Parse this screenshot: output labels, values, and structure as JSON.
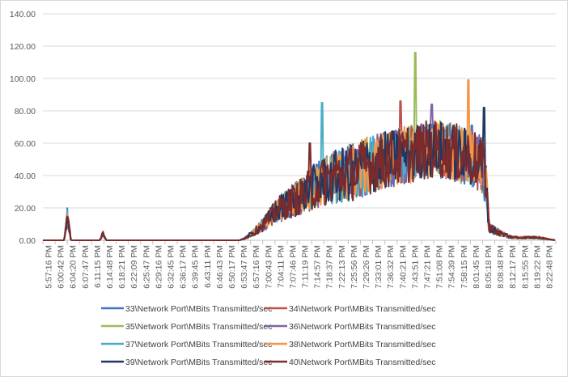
{
  "chart_data": {
    "type": "line",
    "title": "",
    "xlabel": "",
    "ylabel": "",
    "ylim": [
      0,
      140
    ],
    "y_ticks": [
      "0.00",
      "20.00",
      "40.00",
      "60.00",
      "80.00",
      "100.00",
      "120.00",
      "140.00"
    ],
    "grid": true,
    "legend_position": "bottom",
    "x_time_range": [
      "5:57:16 PM",
      "8:24:30 PM"
    ],
    "x_ticks": [
      "5:57:16 PM",
      "6:00:42 PM",
      "6:04:20 PM",
      "6:07:47 PM",
      "6:11:15 PM",
      "6:14:48 PM",
      "6:18:21 PM",
      "6:22:09 PM",
      "6:25:47 PM",
      "6:29:16 PM",
      "6:32:45 PM",
      "6:36:17 PM",
      "6:39:45 PM",
      "6:43:11 PM",
      "6:46:43 PM",
      "6:50:17 PM",
      "6:53:47 PM",
      "6:57:16 PM",
      "7:00:43 PM",
      "7:04:11 PM",
      "7:07:46 PM",
      "7:11:19 PM",
      "7:14:57 PM",
      "7:18:37 PM",
      "7:22:13 PM",
      "7:25:56 PM",
      "7:29:26 PM",
      "7:33:01 PM",
      "7:36:32 PM",
      "7:40:21 PM",
      "7:43:51 PM",
      "7:47:21 PM",
      "7:51:08 PM",
      "7:54:39 PM",
      "7:58:15 PM",
      "8:01:45 PM",
      "8:05:18 PM",
      "8:08:48 PM",
      "8:12:17 PM",
      "8:15:55 PM",
      "8:19:22 PM",
      "8:22:48 PM"
    ],
    "profile": {
      "x": [
        "5:57:16 PM",
        "6:03:20 PM",
        "6:04:20 PM",
        "6:05:20 PM",
        "6:13:30 PM",
        "6:14:30 PM",
        "6:15:30 PM",
        "6:53:47 PM",
        "6:57:16 PM",
        "7:00:43 PM",
        "7:04:11 PM",
        "7:07:46 PM",
        "7:11:19 PM",
        "7:14:57 PM",
        "7:18:37 PM",
        "7:22:13 PM",
        "7:25:56 PM",
        "7:29:26 PM",
        "7:33:01 PM",
        "7:36:32 PM",
        "7:40:21 PM",
        "7:43:51 PM",
        "7:47:21 PM",
        "7:51:08 PM",
        "7:54:39 PM",
        "7:58:15 PM",
        "8:01:45 PM",
        "8:04:30 PM",
        "8:05:18 PM",
        "8:08:48 PM",
        "8:12:17 PM",
        "8:15:55 PM",
        "8:19:22 PM",
        "8:24:30 PM"
      ],
      "y": [
        0,
        0,
        15,
        0,
        0,
        4,
        0,
        0,
        4,
        10,
        18,
        23,
        27,
        33,
        37,
        40,
        42,
        45,
        48,
        50,
        52,
        54,
        56,
        56,
        55,
        52,
        50,
        40,
        8,
        4,
        2,
        2,
        2,
        0
      ]
    },
    "series": [
      {
        "name": "33\\Network Port\\MBits Transmitted/sec",
        "color": "#4472c4",
        "peak": {
          "x": "8:00:30 PM",
          "y": 71
        }
      },
      {
        "name": "34\\Network Port\\MBits Transmitted/sec",
        "color": "#c0504d",
        "peak": {
          "x": "7:40:00 PM",
          "y": 86
        }
      },
      {
        "name": "35\\Network Port\\MBits Transmitted/sec",
        "color": "#9bbb59",
        "peak": {
          "x": "7:44:10 PM",
          "y": 116
        }
      },
      {
        "name": "36\\Network Port\\MBits Transmitted/sec",
        "color": "#8064a2",
        "peak": {
          "x": "7:49:00 PM",
          "y": 84
        }
      },
      {
        "name": "37\\Network Port\\MBits Transmitted/sec",
        "color": "#4bacc6",
        "peak": {
          "x": "7:17:20 PM",
          "y": 85
        }
      },
      {
        "name": "38\\Network Port\\MBits Transmitted/sec",
        "color": "#f79646",
        "peak": {
          "x": "7:59:30 PM",
          "y": 99
        }
      },
      {
        "name": "39\\Network Port\\MBits Transmitted/sec",
        "color": "#1f3864",
        "peak": {
          "x": "8:03:50 PM",
          "y": 82
        }
      },
      {
        "name": "40\\Network Port\\MBits Transmitted/sec",
        "color": "#7b2b2b",
        "peak": {
          "x": "7:14:00 PM",
          "y": 60
        }
      }
    ]
  }
}
